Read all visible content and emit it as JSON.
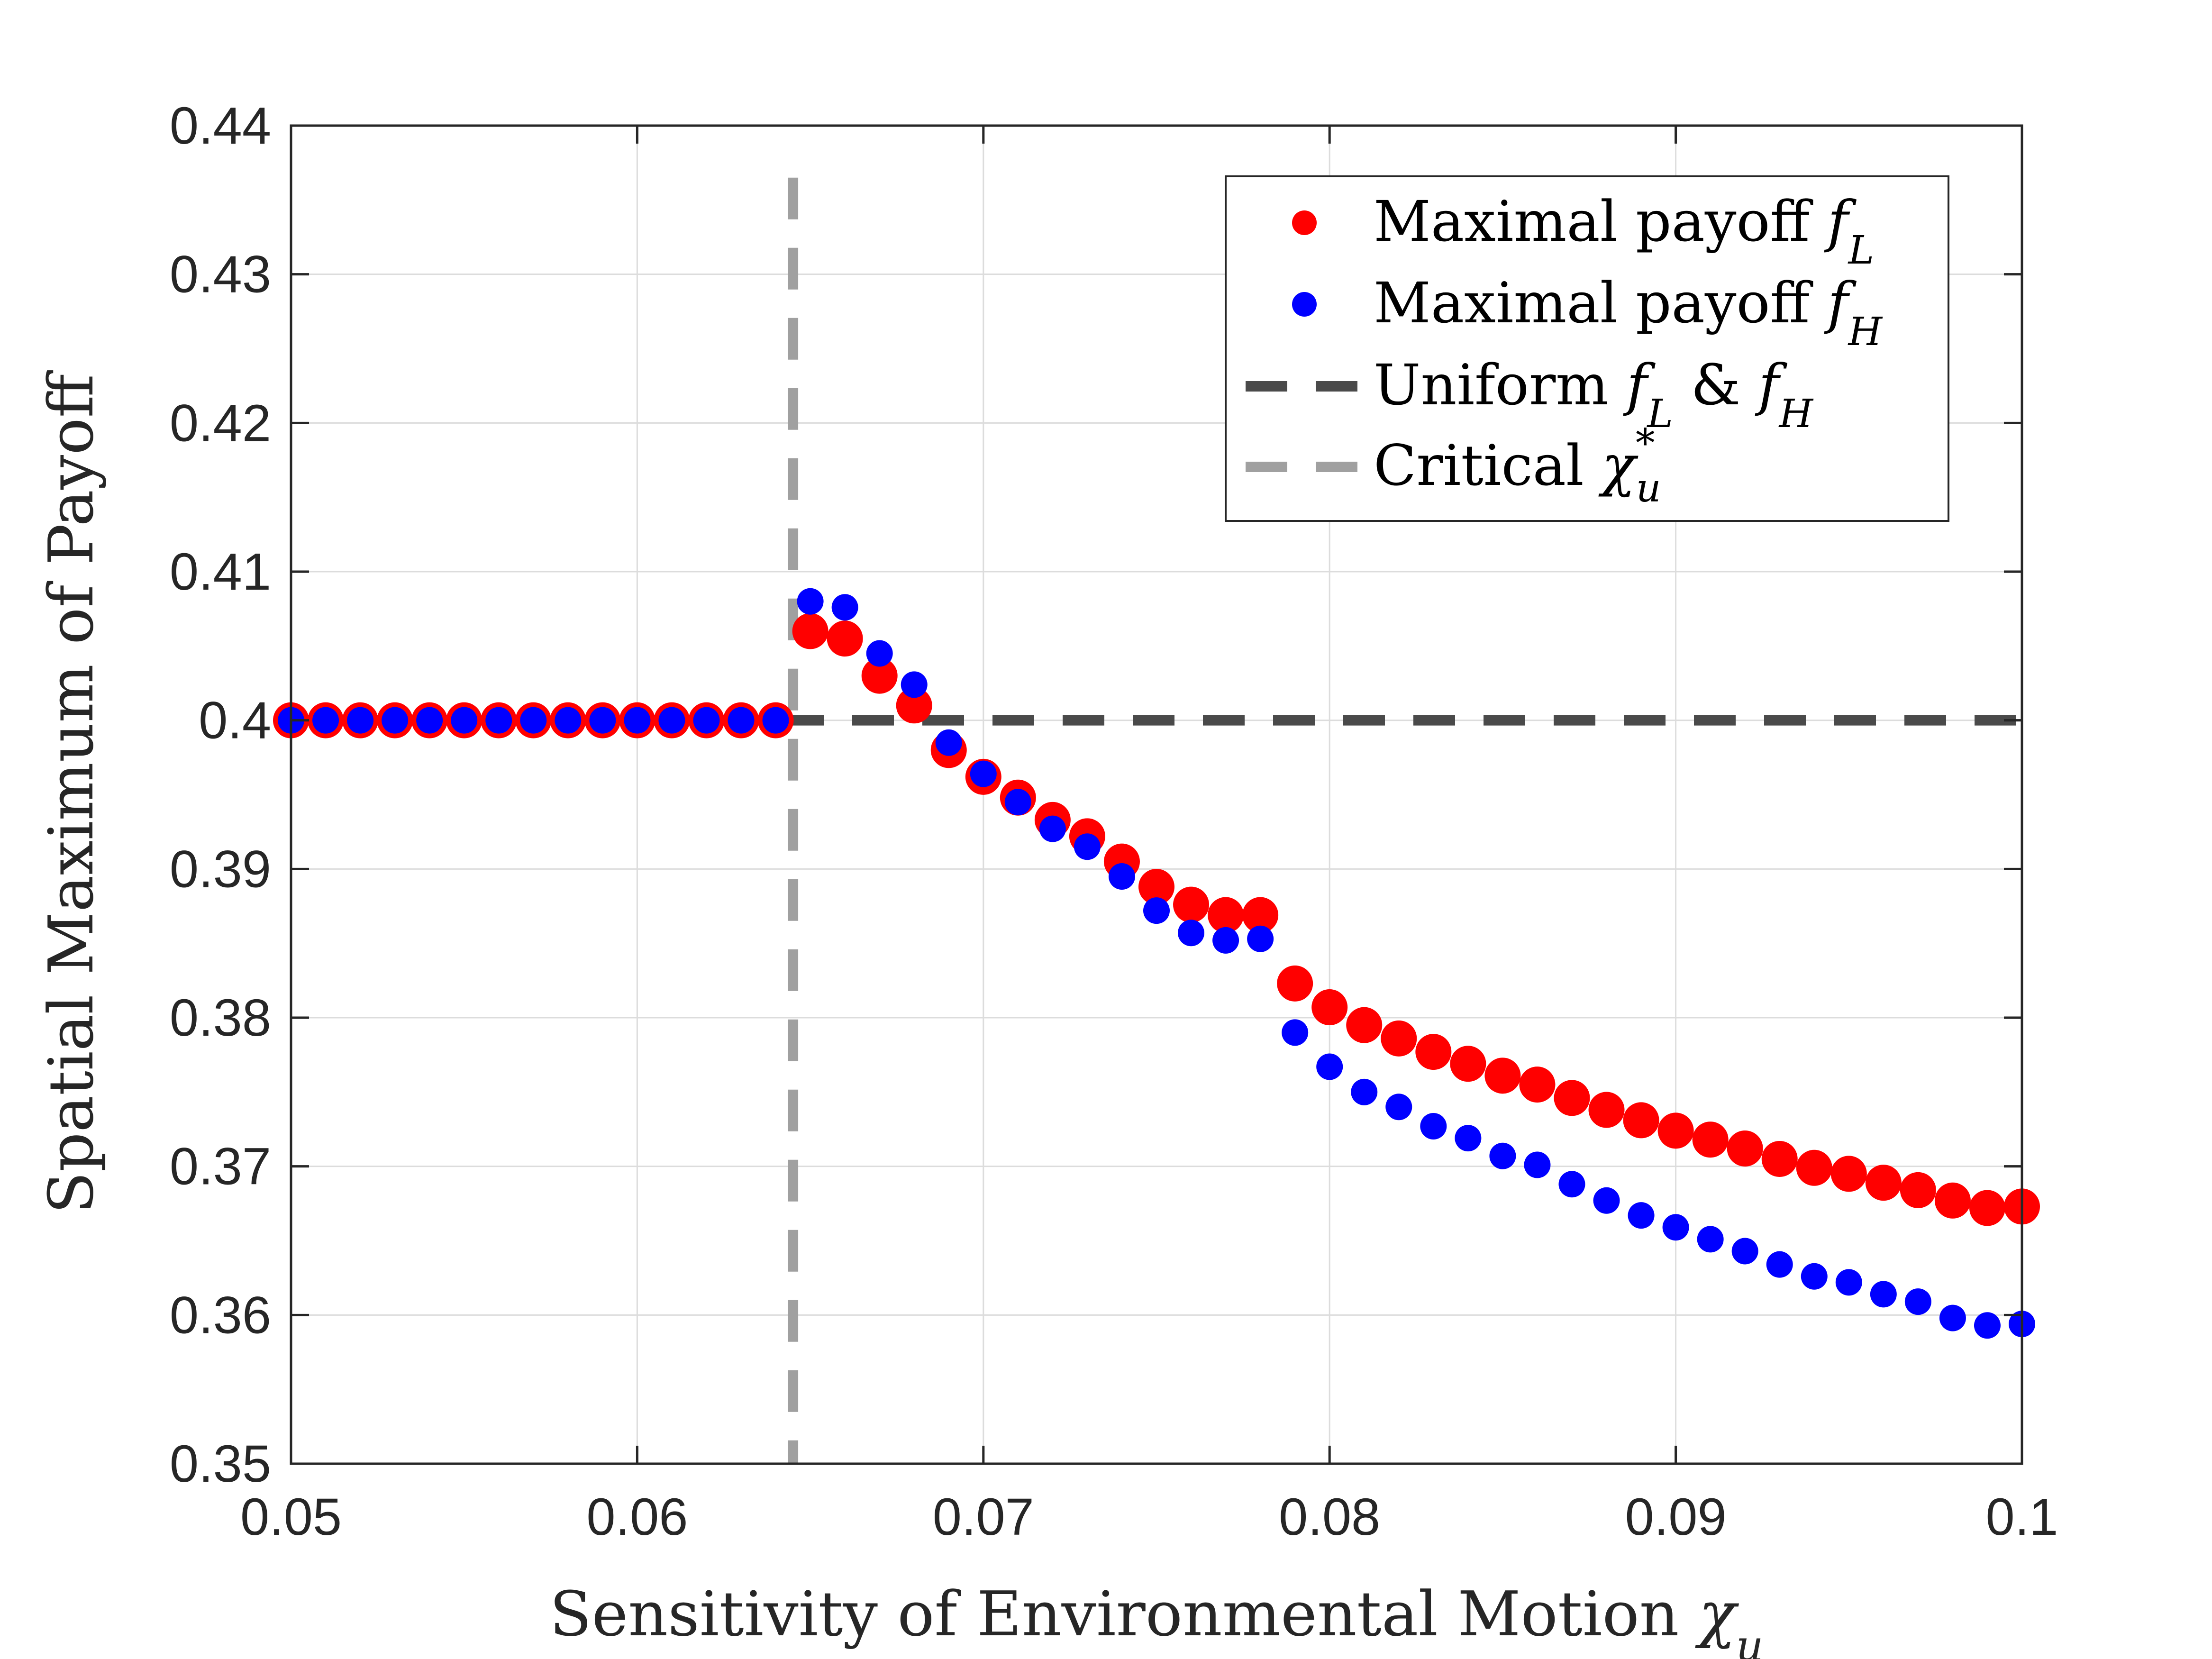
{
  "chart_data": {
    "type": "scatter",
    "xlabel": "Sensitivity of Environmental Motion",
    "xlabel_symbol": "χ",
    "xlabel_symbol_sub": "u",
    "ylabel": "Spatial Maximum of Payoff",
    "xlim": [
      0.05,
      0.1
    ],
    "ylim": [
      0.35,
      0.44
    ],
    "x_ticks": [
      "0.05",
      "0.06",
      "0.07",
      "0.08",
      "0.09",
      "0.1"
    ],
    "y_ticks": [
      "0.35",
      "0.36",
      "0.37",
      "0.38",
      "0.39",
      "0.4",
      "0.41",
      "0.42",
      "0.43",
      "0.44"
    ],
    "grid": true,
    "legend_position": "top-right",
    "colors": {
      "fL": "#ff0000",
      "fH": "#0000ff",
      "uniform": "#4a4a4a",
      "critical": "#a0a0a0"
    },
    "series": [
      {
        "key": "fL",
        "legend_prefix": "Maximal payoff ",
        "legend_symbol": "f",
        "legend_sub": "L",
        "x": [
          0.05,
          0.051,
          0.052,
          0.053,
          0.054,
          0.055,
          0.056,
          0.057,
          0.058,
          0.059,
          0.06,
          0.061,
          0.062,
          0.063,
          0.064,
          0.065,
          0.066,
          0.067,
          0.068,
          0.069,
          0.07,
          0.071,
          0.072,
          0.073,
          0.074,
          0.075,
          0.076,
          0.077,
          0.078,
          0.079,
          0.08,
          0.081,
          0.082,
          0.083,
          0.084,
          0.085,
          0.086,
          0.087,
          0.088,
          0.089,
          0.09,
          0.091,
          0.092,
          0.093,
          0.094,
          0.095,
          0.096,
          0.097,
          0.098,
          0.099,
          0.1
        ],
        "y": [
          0.4,
          0.4,
          0.4,
          0.4,
          0.4,
          0.4,
          0.4,
          0.4,
          0.4,
          0.4,
          0.4,
          0.4,
          0.4,
          0.4,
          0.4,
          0.406,
          0.4055,
          0.403,
          0.401,
          0.398,
          0.3962,
          0.3948,
          0.3933,
          0.3922,
          0.3905,
          0.3888,
          0.3876,
          0.3869,
          0.3869,
          0.3823,
          0.3807,
          0.3795,
          0.3786,
          0.3777,
          0.3769,
          0.3761,
          0.3755,
          0.3746,
          0.3738,
          0.3731,
          0.3724,
          0.3718,
          0.3712,
          0.3705,
          0.3699,
          0.3695,
          0.3689,
          0.3684,
          0.3677,
          0.3672,
          0.3673
        ]
      },
      {
        "key": "fH",
        "legend_prefix": "Maximal payoff ",
        "legend_symbol": "f",
        "legend_sub": "H",
        "x": [
          0.05,
          0.051,
          0.052,
          0.053,
          0.054,
          0.055,
          0.056,
          0.057,
          0.058,
          0.059,
          0.06,
          0.061,
          0.062,
          0.063,
          0.064,
          0.065,
          0.066,
          0.067,
          0.068,
          0.069,
          0.07,
          0.071,
          0.072,
          0.073,
          0.074,
          0.075,
          0.076,
          0.077,
          0.078,
          0.079,
          0.08,
          0.081,
          0.082,
          0.083,
          0.084,
          0.085,
          0.086,
          0.087,
          0.088,
          0.089,
          0.09,
          0.091,
          0.092,
          0.093,
          0.094,
          0.095,
          0.096,
          0.097,
          0.098,
          0.099,
          0.1
        ],
        "y": [
          0.4,
          0.4,
          0.4,
          0.4,
          0.4,
          0.4,
          0.4,
          0.4,
          0.4,
          0.4,
          0.4,
          0.4,
          0.4,
          0.4,
          0.4,
          0.408,
          0.4076,
          0.4045,
          0.4024,
          0.3985,
          0.3964,
          0.3945,
          0.3927,
          0.3915,
          0.3895,
          0.3872,
          0.3857,
          0.3852,
          0.3853,
          0.379,
          0.3767,
          0.375,
          0.374,
          0.3727,
          0.3719,
          0.3707,
          0.3701,
          0.3688,
          0.3677,
          0.3667,
          0.3659,
          0.3651,
          0.3643,
          0.3634,
          0.3626,
          0.3622,
          0.3614,
          0.3609,
          0.3598,
          0.3593,
          0.3594
        ]
      },
      {
        "key": "uniform",
        "legend_prefix": "Uniform ",
        "legend_symbol": "f",
        "legend_sub": "L",
        "legend_mid": " & ",
        "legend_symbol2": "f",
        "legend_sub2": "H",
        "y_value": 0.4
      },
      {
        "key": "critical",
        "legend_prefix": "Critical ",
        "legend_symbol": "χ",
        "legend_sub": "u",
        "legend_sup": "*",
        "x_value": 0.0645
      }
    ]
  }
}
